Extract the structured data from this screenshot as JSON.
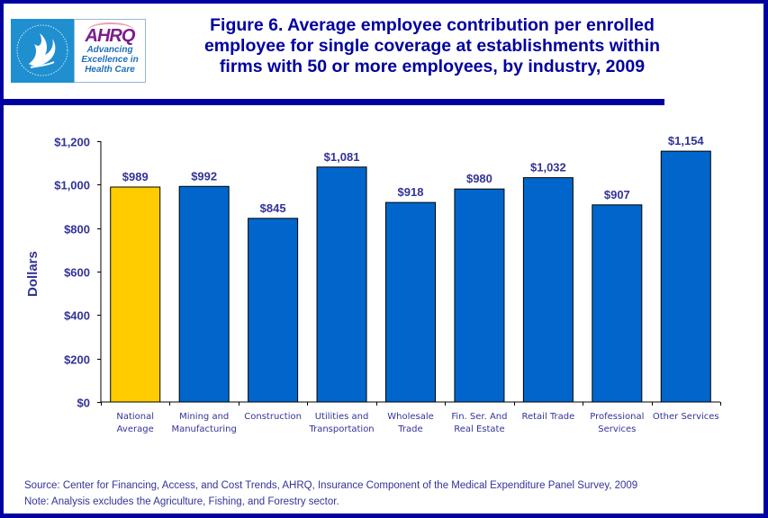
{
  "logo": {
    "hhs_icon": "hhs-eagle-seal-icon",
    "ahrq_mark": "AHRQ",
    "ahrq_tagline": [
      "Advancing",
      "Excellence in",
      "Health Care"
    ]
  },
  "title_lines": [
    "Figure 6. Average employee contribution per enrolled",
    "employee for single coverage at establishments within",
    "firms with 50 or more employees, by industry, 2009"
  ],
  "footer": {
    "source": "Source: Center for Financing, Access, and Cost Trends, AHRQ, Insurance Component of the Medical Expenditure Panel Survey, 2009",
    "note": "Note: Analysis excludes the Agriculture, Fishing, and Forestry sector."
  },
  "colors": {
    "frame": "#0000A0",
    "text": "#333399",
    "highlight_bar": "#FFCC00",
    "bar": "#0066CC"
  },
  "chart_data": {
    "type": "bar",
    "title": "Figure 6. Average employee contribution per enrolled employee for single coverage at establishments within firms with 50 or more employees, by industry, 2009",
    "xlabel": "",
    "ylabel": "Dollars",
    "ylim": [
      0,
      1200
    ],
    "yticks": [
      0,
      200,
      400,
      600,
      800,
      1000,
      1200
    ],
    "ytick_labels": [
      "$0",
      "$200",
      "$400",
      "$600",
      "$800",
      "$1,000",
      "$1,200"
    ],
    "grid": false,
    "legend": "none",
    "categories": [
      [
        "National",
        "Average"
      ],
      [
        "Mining and",
        "Manufacturing"
      ],
      [
        "Construction"
      ],
      [
        "Utilities and",
        "Transportation"
      ],
      [
        "Wholesale",
        "Trade"
      ],
      [
        "Fin. Ser. And",
        "Real Estate"
      ],
      [
        "Retail Trade"
      ],
      [
        "Professional",
        "Services"
      ],
      [
        "Other Services"
      ]
    ],
    "values": [
      989,
      992,
      845,
      1081,
      918,
      980,
      1032,
      907,
      1154
    ],
    "data_labels": [
      "$989",
      "$992",
      "$845",
      "$1,081",
      "$918",
      "$980",
      "$1,032",
      "$907",
      "$1,154"
    ],
    "highlight_index": 0
  }
}
